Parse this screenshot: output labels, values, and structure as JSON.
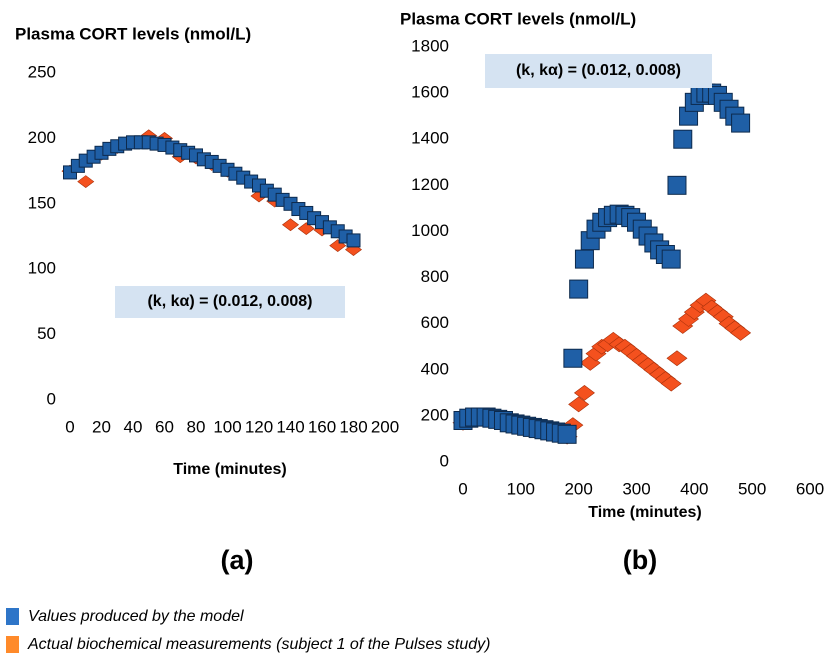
{
  "chart_data": [
    {
      "type": "scatter",
      "title": "Plasma CORT levels (nmol/L)",
      "xlabel": "Time (minutes)",
      "annotation": "(k, kα) = (0.012, 0.008)",
      "panel_label": "(a)",
      "xlim": [
        0,
        200
      ],
      "xticks": [
        0,
        20,
        40,
        60,
        80,
        100,
        120,
        140,
        160,
        180,
        200
      ],
      "ylim": [
        0,
        250
      ],
      "yticks": [
        0,
        50,
        100,
        150,
        200,
        250
      ],
      "series": [
        {
          "name": "Values produced by the model",
          "color": "#1f5fa6",
          "marker": "square",
          "x": [
            0,
            5,
            10,
            15,
            20,
            25,
            30,
            35,
            40,
            45,
            50,
            55,
            60,
            65,
            70,
            75,
            80,
            85,
            90,
            95,
            100,
            105,
            110,
            115,
            120,
            125,
            130,
            135,
            140,
            145,
            150,
            155,
            160,
            165,
            170,
            175,
            180
          ],
          "values": [
            174,
            179,
            183,
            186,
            189,
            192,
            194,
            196,
            197,
            197,
            197,
            196,
            195,
            193,
            191,
            189,
            187,
            184,
            182,
            179,
            176,
            173,
            170,
            167,
            164,
            160,
            157,
            153,
            150,
            146,
            143,
            139,
            136,
            132,
            129,
            125,
            122
          ]
        },
        {
          "name": "Actual biochemical measurements (subject 1 of the Pulses study)",
          "color": "#f4511e",
          "marker": "diamond",
          "x": [
            0,
            10,
            20,
            30,
            40,
            50,
            60,
            70,
            80,
            90,
            100,
            110,
            120,
            130,
            140,
            150,
            160,
            170,
            180
          ],
          "values": [
            175,
            167,
            188,
            193,
            197,
            202,
            200,
            186,
            185,
            180,
            175,
            170,
            156,
            152,
            134,
            131,
            130,
            118,
            115
          ]
        }
      ]
    },
    {
      "type": "scatter",
      "title": "Plasma CORT levels (nmol/L)",
      "xlabel": "Time (minutes)",
      "annotation": "(k, kα) = (0.012, 0.008)",
      "panel_label": "(b)",
      "xlim": [
        0,
        600
      ],
      "xticks": [
        0,
        100,
        200,
        300,
        400,
        500,
        600
      ],
      "ylim": [
        0,
        1800
      ],
      "yticks": [
        0,
        200,
        400,
        600,
        800,
        1000,
        1200,
        1400,
        1600,
        1800
      ],
      "series": [
        {
          "color": "#1f5fa6",
          "marker": "square",
          "x": [
            0,
            10,
            20,
            30,
            40,
            50,
            60,
            70,
            80,
            90,
            100,
            110,
            120,
            130,
            140,
            150,
            160,
            170,
            180,
            190,
            200,
            210,
            220,
            230,
            240,
            250,
            260,
            270,
            280,
            290,
            300,
            310,
            320,
            330,
            340,
            350,
            360,
            370,
            380,
            390,
            400,
            410,
            420,
            430,
            440,
            450,
            460,
            470,
            480
          ],
          "values": [
            180,
            190,
            195,
            195,
            195,
            190,
            185,
            180,
            170,
            165,
            160,
            155,
            150,
            145,
            140,
            135,
            130,
            125,
            120,
            450,
            750,
            880,
            960,
            1010,
            1040,
            1060,
            1070,
            1075,
            1070,
            1060,
            1040,
            1010,
            980,
            950,
            920,
            900,
            880,
            1200,
            1400,
            1500,
            1560,
            1590,
            1600,
            1600,
            1590,
            1560,
            1530,
            1500,
            1470
          ]
        },
        {
          "color": "#f4511e",
          "marker": "diamond",
          "x": [
            0,
            60,
            120,
            180,
            190,
            200,
            210,
            220,
            230,
            240,
            250,
            260,
            270,
            280,
            290,
            300,
            310,
            320,
            330,
            340,
            350,
            360,
            370,
            380,
            390,
            400,
            410,
            420,
            430,
            440,
            450,
            460,
            470,
            480
          ],
          "values": [
            170,
            180,
            150,
            110,
            160,
            250,
            300,
            430,
            470,
            500,
            510,
            530,
            510,
            500,
            480,
            460,
            440,
            420,
            400,
            380,
            360,
            340,
            450,
            590,
            620,
            650,
            680,
            700,
            670,
            650,
            630,
            600,
            580,
            560
          ]
        }
      ]
    }
  ]
}
